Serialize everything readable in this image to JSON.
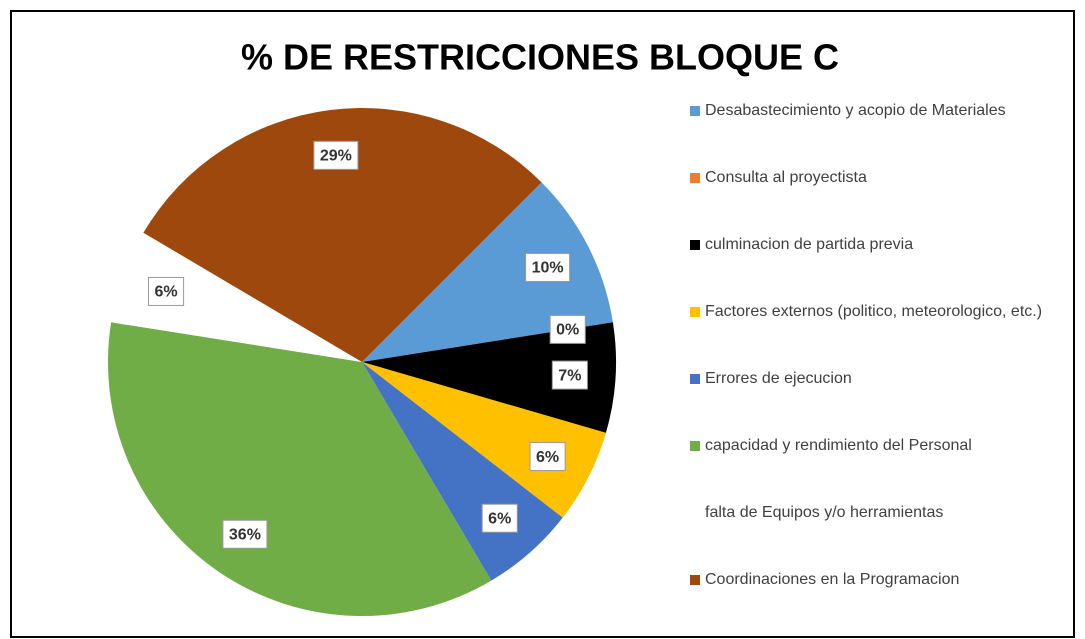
{
  "chart_data": {
    "type": "pie",
    "title": "% DE RESTRICCIONES BLOQUE C",
    "categories": [
      "Desabastecimiento y acopio de Materiales",
      "Consulta al proyectista",
      "culminacion de partida previa",
      "Factores externos (politico, meteorologico, etc.)",
      "Errores de ejecucion",
      "capacidad y rendimiento del Personal",
      "falta de Equipos y/o herramientas",
      "Coordinaciones en la Programacion"
    ],
    "values": [
      10,
      0,
      7,
      6,
      6,
      36,
      6,
      29
    ],
    "value_labels": [
      "10%",
      "0%",
      "7%",
      "6%",
      "6%",
      "36%",
      "6%",
      "29%"
    ],
    "colors": [
      "#5b9bd5",
      "#ed7d31",
      "#000000",
      "#ffc000",
      "#4472c4",
      "#70ad47",
      "#ffffff",
      "#9e480e"
    ],
    "legend": "right"
  }
}
